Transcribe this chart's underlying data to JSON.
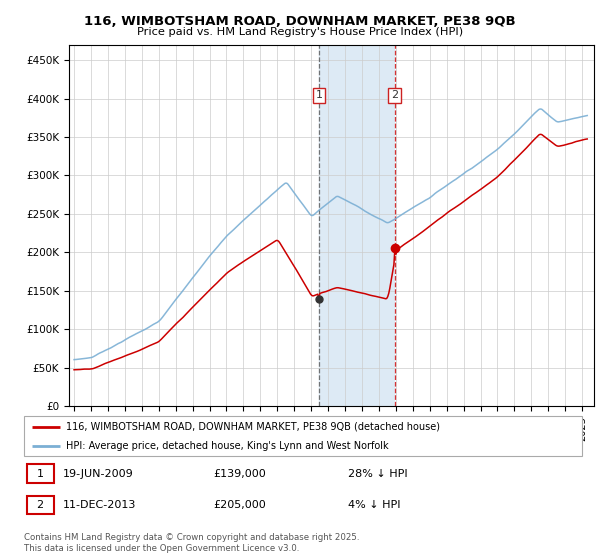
{
  "title_line1": "116, WIMBOTSHAM ROAD, DOWNHAM MARKET, PE38 9QB",
  "title_line2": "Price paid vs. HM Land Registry's House Price Index (HPI)",
  "sale1_date": "19-JUN-2009",
  "sale1_price": 139000,
  "sale1_label": "1",
  "sale1_pct": "28% ↓ HPI",
  "sale2_date": "11-DEC-2013",
  "sale2_price": 205000,
  "sale2_label": "2",
  "sale2_pct": "4% ↓ HPI",
  "legend1": "116, WIMBOTSHAM ROAD, DOWNHAM MARKET, PE38 9QB (detached house)",
  "legend2": "HPI: Average price, detached house, King's Lynn and West Norfolk",
  "footnote": "Contains HM Land Registry data © Crown copyright and database right 2025.\nThis data is licensed under the Open Government Licence v3.0.",
  "red_color": "#cc0000",
  "blue_color": "#7bafd4",
  "shaded_color": "#ddeaf5",
  "sale1_x": 2009.46,
  "sale2_x": 2013.92,
  "ylim_max": 470000,
  "ylim_min": 0
}
